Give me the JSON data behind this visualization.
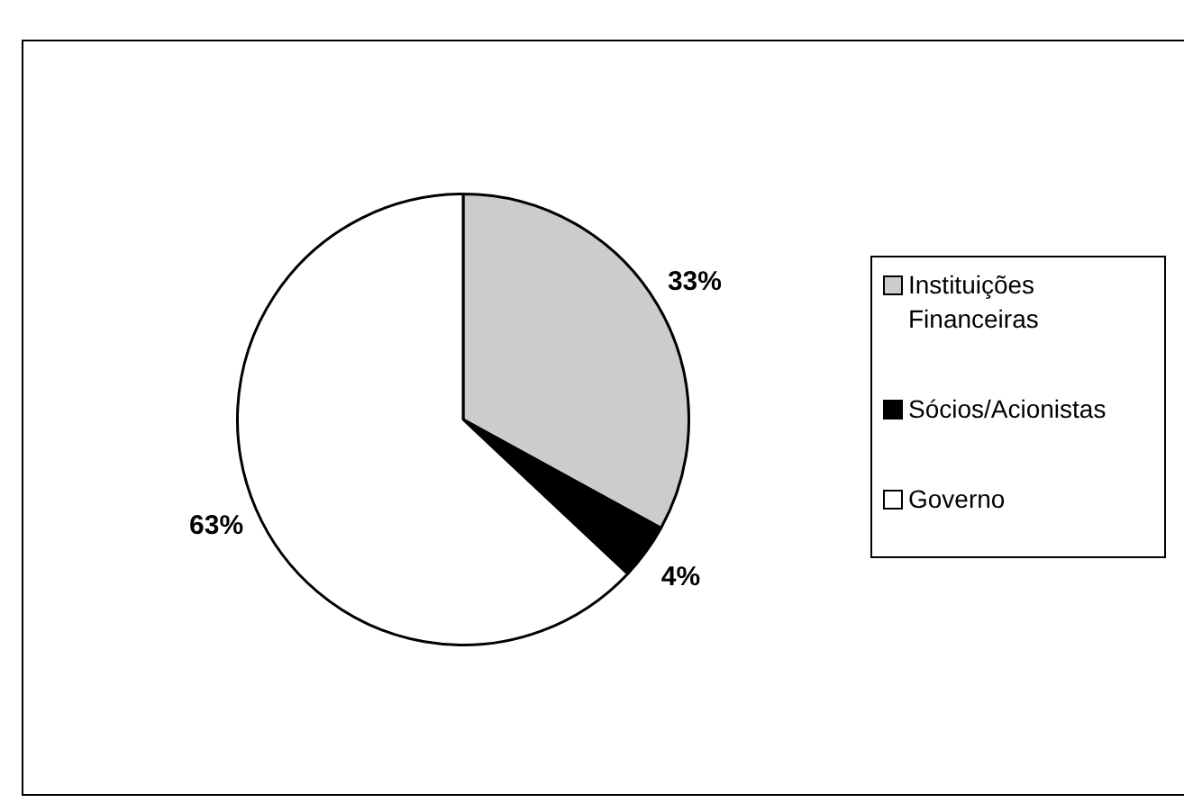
{
  "chart_data": {
    "type": "pie",
    "categories": [
      "Instituições Financeiras",
      "Sócios/Acionistas",
      "Governo"
    ],
    "values": [
      33,
      4,
      63
    ],
    "colors": [
      "#cccccc",
      "#000000",
      "#ffffff"
    ],
    "value_labels": [
      "33%",
      "4%",
      "63%"
    ],
    "legend": "right"
  }
}
